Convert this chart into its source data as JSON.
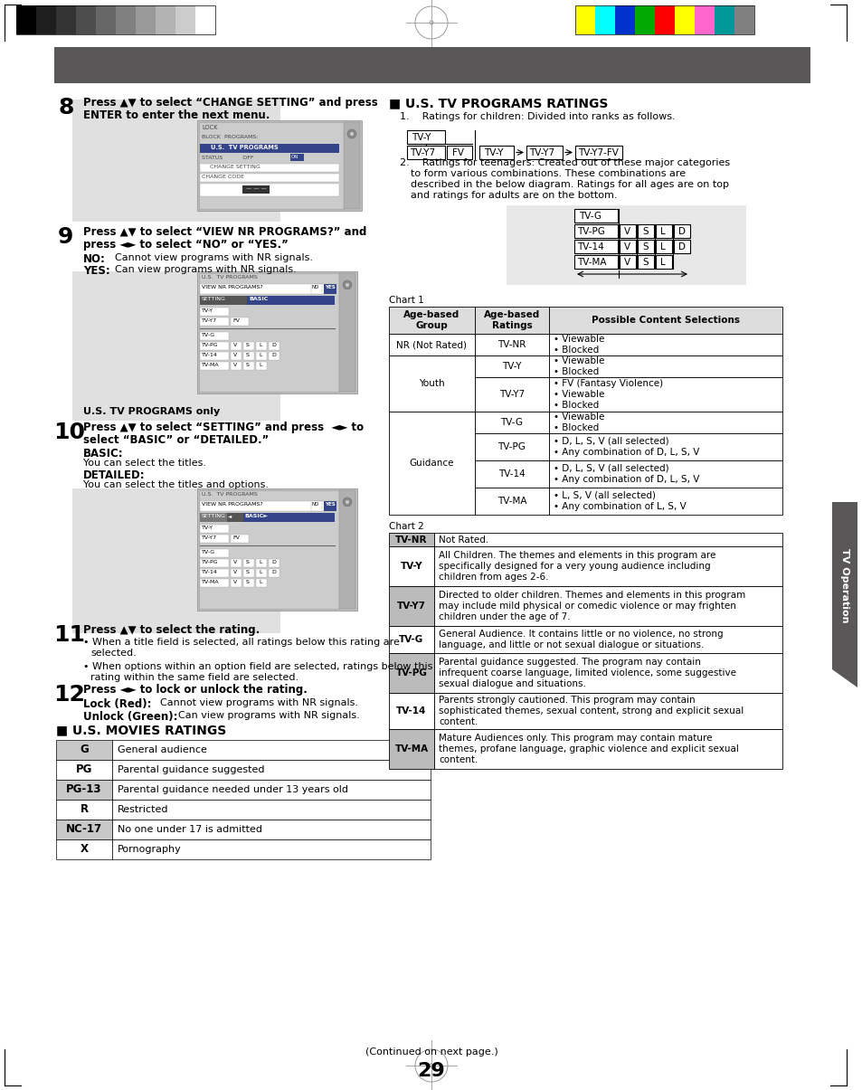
{
  "page_num": "29",
  "continued_text": "(Continued on next page.)",
  "header_gray": "#595757",
  "tab_color": "#595757",
  "us_movies_title": "■ U.S. MOVIES RATINGS",
  "us_tv_title": "■ U.S. TV PROGRAMS RATINGS",
  "tv_operation_label": "TV Operation",
  "movies_ratings": [
    [
      "G",
      "General audience"
    ],
    [
      "PG",
      "Parental guidance suggested"
    ],
    [
      "PG-13",
      "Parental guidance needed under 13 years old"
    ],
    [
      "R",
      "Restricted"
    ],
    [
      "NC-17",
      "No one under 17 is admitted"
    ],
    [
      "X",
      "Pornography"
    ]
  ],
  "chart1_headers": [
    "Age-based\nGroup",
    "Age-based\nRatings",
    "Possible Content Selections"
  ],
  "chart1_rows": [
    [
      "NR (Not Rated)",
      "TV-NR",
      "• Viewable\n• Blocked"
    ],
    [
      "Youth",
      "TV-Y",
      "• Viewable\n• Blocked"
    ],
    [
      "Youth",
      "TV-Y7",
      "• FV (Fantasy Violence)\n• Viewable\n• Blocked"
    ],
    [
      "Guidance",
      "TV-G",
      "• Viewable\n• Blocked"
    ],
    [
      "Guidance",
      "TV-PG",
      "• D, L, S, V (all selected)\n• Any combination of D, L, S, V"
    ],
    [
      "Guidance",
      "TV-14",
      "• D, L, S, V (all selected)\n• Any combination of D, L, S, V"
    ],
    [
      "Guidance",
      "TV-MA",
      "• L, S, V (all selected)\n• Any combination of L, S, V"
    ]
  ],
  "chart2_rows": [
    [
      "TV-NR",
      "Not Rated."
    ],
    [
      "TV-Y",
      "All Children. The themes and elements in this program are\nspecifically designed for a very young audience including\nchildren from ages 2-6."
    ],
    [
      "TV-Y7",
      "Directed to older children. Themes and elements in this program\nmay include mild physical or comedic violence or may frighten\nchildren under the age of 7."
    ],
    [
      "TV-G",
      "General Audience. It contains little or no violence, no strong\nlanguage, and little or not sexual dialogue or situations."
    ],
    [
      "TV-PG",
      "Parental guidance suggested. The program nay contain\ninfrequent coarse language, limited violence, some suggestive\nsexual dialogue and situations."
    ],
    [
      "TV-14",
      "Parents strongly cautioned. This program may contain\nsophisticated themes, sexual content, strong and explicit sexual\ncontent."
    ],
    [
      "TV-MA",
      "Mature Audiences only. This program may contain mature\nthemes, profane language, graphic violence and explicit sexual\ncontent."
    ]
  ],
  "colors_left": [
    "#000000",
    "#1e1e1e",
    "#333333",
    "#4d4d4d",
    "#666666",
    "#808080",
    "#999999",
    "#b3b3b3",
    "#cccccc",
    "#ffffff"
  ],
  "colors_right": [
    "#ffff00",
    "#00ffff",
    "#0033cc",
    "#00aa00",
    "#ff0000",
    "#ffff00",
    "#ff66cc",
    "#009999",
    "#808080"
  ]
}
